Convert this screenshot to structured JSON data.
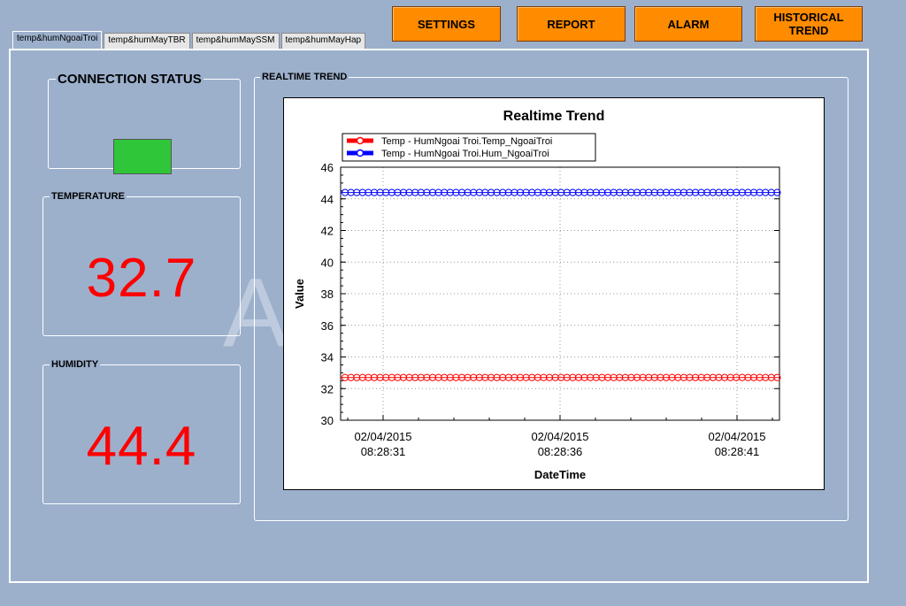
{
  "tabs": [
    {
      "label": "temp&humNgoaiTroi",
      "active": true
    },
    {
      "label": "temp&humMayTBR",
      "active": false
    },
    {
      "label": "temp&humMaySSM",
      "active": false
    },
    {
      "label": "temp&humMayHap",
      "active": false
    }
  ],
  "toolbar": {
    "settings_label": "SETTINGS",
    "report_label": "REPORT",
    "alarm_label": "ALARM",
    "historical_label": "HISTORICAL TREND"
  },
  "connection": {
    "title": "CONNECTION STATUS",
    "status_color": "#2fc63a"
  },
  "temperature": {
    "title": "TEMPERATURE",
    "value": "32.7"
  },
  "humidity": {
    "title": "HUMIDITY",
    "value": "44.4"
  },
  "trend_group": {
    "title": "REALTIME TREND"
  },
  "watermark": {
    "text": "A"
  },
  "chart_data": {
    "type": "line",
    "title": "Realtime Trend",
    "xlabel": "DateTime",
    "ylabel": "Value",
    "ylim": [
      30,
      46
    ],
    "yticks": [
      30,
      32,
      34,
      36,
      38,
      40,
      42,
      44,
      46
    ],
    "xtick_labels": [
      {
        "date": "02/04/2015",
        "time": "08:28:31"
      },
      {
        "date": "02/04/2015",
        "time": "08:28:36"
      },
      {
        "date": "02/04/2015",
        "time": "08:28:41"
      }
    ],
    "x_range_seconds": [
      -1.2,
      11.2
    ],
    "grid": true,
    "legend_position": "top-left",
    "series": [
      {
        "name": "Temp - HumNgoai Troi.Temp_NgoaiTroi",
        "color": "#ff0000",
        "value": 32.7
      },
      {
        "name": "Temp - HumNgoai Troi.Hum_NgoaiTroi",
        "color": "#0000ff",
        "value": 44.4
      }
    ]
  }
}
